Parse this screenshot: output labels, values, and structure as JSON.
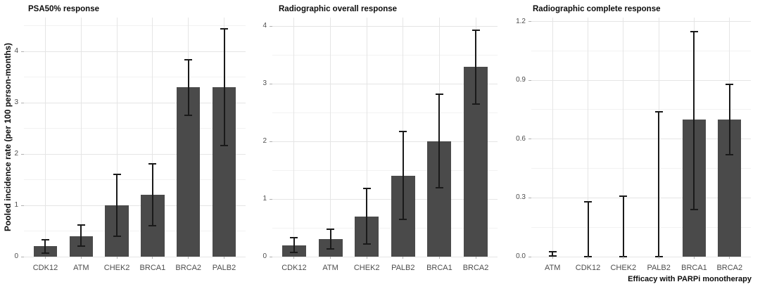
{
  "figure": {
    "y_axis_label": "Pooled incidence rate (per 100 person-months)",
    "x_axis_label": "Efficacy with PARPi monotherapy"
  },
  "colors": {
    "background": "#ffffff",
    "bar": "#4a4a4a",
    "error": "#1a1a1a",
    "grid_major": "#e5e5e5",
    "grid_minor": "#f2f2f2",
    "tick_mark": "#b0b0b0",
    "tick_text": "#4d4d4d",
    "title_text": "#0d0d0d"
  },
  "chart_data": [
    {
      "type": "bar",
      "title": "PSA50% response",
      "ylabel": "Pooled incidence rate (per 100 person-months)",
      "xlabel": "",
      "categories": [
        "CDK12",
        "ATM",
        "CHEK2",
        "BRCA1",
        "BRCA2",
        "PALB2"
      ],
      "values": [
        0.2,
        0.4,
        1.0,
        1.2,
        3.3,
        3.3
      ],
      "error_low": [
        0.07,
        0.2,
        0.4,
        0.6,
        2.76,
        2.16
      ],
      "error_high": [
        0.33,
        0.61,
        1.6,
        1.81,
        3.84,
        4.44
      ],
      "yticks": [
        0,
        1,
        2,
        3,
        4
      ],
      "ytick_labels": [
        "0",
        "1",
        "2",
        "3",
        "4"
      ],
      "ylim": [
        0,
        4.66
      ],
      "grid": "on",
      "legend": "none"
    },
    {
      "type": "bar",
      "title": "Radiographic overall response",
      "ylabel": "",
      "xlabel": "",
      "categories": [
        "CDK12",
        "ATM",
        "CHEK2",
        "PALB2",
        "BRCA1",
        "BRCA2"
      ],
      "values": [
        0.2,
        0.3,
        0.7,
        1.4,
        2.0,
        3.3
      ],
      "error_low": [
        0.07,
        0.13,
        0.22,
        0.65,
        1.2,
        2.65
      ],
      "error_high": [
        0.33,
        0.48,
        1.18,
        2.17,
        2.82,
        3.93
      ],
      "yticks": [
        0,
        1,
        2,
        3,
        4
      ],
      "ytick_labels": [
        "0",
        "1",
        "2",
        "3",
        "4"
      ],
      "ylim": [
        0,
        4.15
      ],
      "grid": "on",
      "legend": "none"
    },
    {
      "type": "bar",
      "title": "Radiographic complete response",
      "ylabel": "",
      "xlabel": "Efficacy with PARPi monotherapy",
      "categories": [
        "ATM",
        "CDK12",
        "CHEK2",
        "PALB2",
        "BRCA1",
        "BRCA2"
      ],
      "values": [
        0,
        0,
        0,
        0,
        0.7,
        0.7
      ],
      "error_low": [
        0.005,
        0,
        0,
        0,
        0.24,
        0.52
      ],
      "error_high": [
        0.025,
        0.28,
        0.31,
        0.74,
        1.15,
        0.88
      ],
      "yticks": [
        0,
        0.3,
        0.6,
        0.9,
        1.2
      ],
      "ytick_labels": [
        "0.0",
        "0.3",
        "0.6",
        "0.9",
        "1.2"
      ],
      "ylim": [
        0,
        1.22
      ],
      "grid": "on",
      "legend": "none"
    }
  ]
}
